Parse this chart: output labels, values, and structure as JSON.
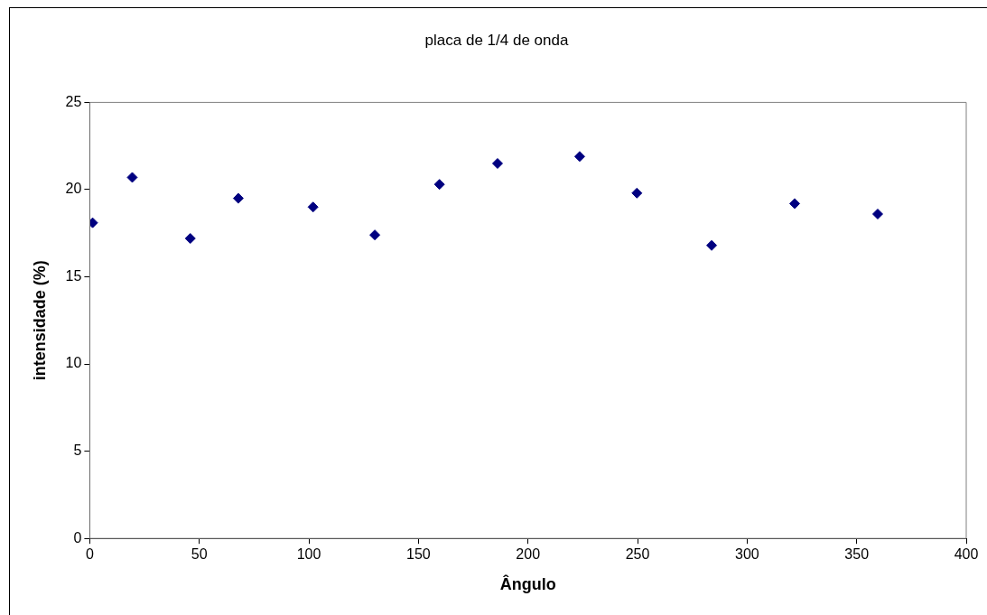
{
  "chart_data": {
    "type": "scatter",
    "title": "placa de 1/4 de onda",
    "xlabel": "Ângulo",
    "ylabel": "intensidade (%)",
    "series": [
      {
        "color": "#000080",
        "x": [
          1.3,
          19.4,
          45.9,
          67.8,
          101.9,
          130.1,
          159.6,
          186.1,
          223.6,
          249.7,
          283.8,
          321.7,
          359.6
        ],
        "values": [
          18.1,
          20.7,
          17.2,
          19.5,
          19,
          17.4,
          20.3,
          21.5,
          21.9,
          19.8,
          16.8,
          19.2,
          18.6
        ]
      }
    ],
    "xlim": [
      0,
      400
    ],
    "xticks": [
      0,
      50,
      100,
      150,
      200,
      250,
      300,
      350,
      400
    ],
    "ylim": [
      0,
      25
    ],
    "yticks": [
      0,
      5,
      10,
      15,
      20,
      25
    ],
    "grid": false,
    "legend": false,
    "marker": "diamond"
  }
}
